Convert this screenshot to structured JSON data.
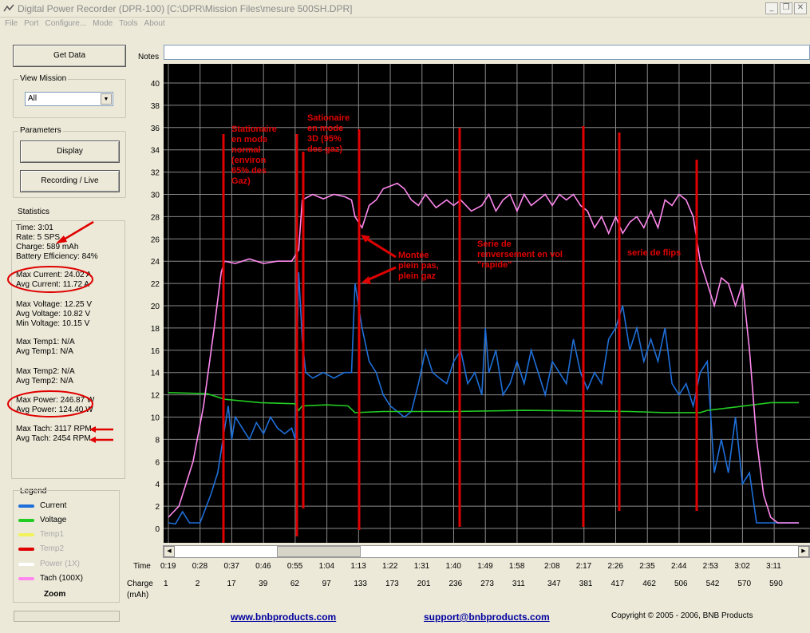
{
  "window": {
    "title": "Digital Power Recorder (DPR-100) [C:\\DPR\\Mission Files\\mesure 500SH.DPR]",
    "controls": [
      "_",
      "❐",
      "✕"
    ]
  },
  "menu": [
    "File",
    "Port",
    "Configure...",
    "Mode",
    "Tools",
    "About"
  ],
  "left_panel": {
    "get_data": "Get Data",
    "view_mission": {
      "title": "View Mission",
      "selected": "All"
    },
    "parameters": {
      "title": "Parameters",
      "display": "Display",
      "recording": "Recording / Live"
    },
    "statistics": {
      "title": "Statistics",
      "lines": [
        "Time: 3:01",
        "Rate: 5 SPS",
        "Charge: 589 mAh",
        "Battery Efficiency: 84%",
        "Max Current: 24.02 A",
        "Avg Current: 11.72 A",
        "Max Voltage: 12.25 V",
        "Avg Voltage: 10.82 V",
        "Min Voltage: 10.15 V",
        "Max Temp1: N/A",
        "Avg Temp1: N/A",
        "Max Temp2: N/A",
        "Avg Temp2: N/A",
        "Max Power: 246.87 W",
        "Avg Power: 124.40 W",
        "Max Tach: 3117 RPM",
        "Avg Tach: 2454 RPM"
      ]
    },
    "legend": {
      "title": "Legend",
      "items": [
        {
          "label": "Current",
          "color": "#1e6fd9",
          "active": true
        },
        {
          "label": "Voltage",
          "color": "#22cc22",
          "active": true
        },
        {
          "label": "Temp1",
          "color": "#f2f25a",
          "active": false
        },
        {
          "label": "Temp2",
          "color": "#e00000",
          "active": false
        },
        {
          "label": "Power (1X)",
          "color": "#ffffff",
          "active": false
        },
        {
          "label": "Tach    (100X)",
          "color": "#ff88ee",
          "active": true
        }
      ],
      "zoom": "Zoom"
    }
  },
  "notes": {
    "label": "Notes",
    "value": ""
  },
  "chart_data": {
    "type": "line",
    "ylim": [
      0,
      40
    ],
    "yticks": [
      0,
      2,
      4,
      6,
      8,
      10,
      12,
      14,
      16,
      18,
      20,
      22,
      24,
      26,
      28,
      30,
      32,
      34,
      36,
      38,
      40
    ],
    "xlim": [
      19,
      198
    ],
    "grid": true,
    "time_label": "Time",
    "charge_label": "Charge\n(mAh)",
    "time_ticks": [
      "0:19",
      "0:28",
      "0:37",
      "0:46",
      "0:55",
      "1:04",
      "1:13",
      "1:22",
      "1:31",
      "1:40",
      "1:49",
      "1:58",
      "2:08",
      "2:17",
      "2:26",
      "2:35",
      "2:44",
      "2:53",
      "3:02",
      "3:11"
    ],
    "charge_ticks": [
      "1",
      "2",
      "17",
      "39",
      "62",
      "97",
      "133",
      "173",
      "201",
      "236",
      "273",
      "311",
      "347",
      "381",
      "417",
      "462",
      "506",
      "542",
      "570",
      "590"
    ],
    "series": [
      {
        "name": "Current",
        "color": "#1e6fd9",
        "points": [
          [
            19,
            0.5
          ],
          [
            21,
            0.4
          ],
          [
            23,
            1.5
          ],
          [
            25,
            0.5
          ],
          [
            28,
            0.5
          ],
          [
            31,
            3
          ],
          [
            33,
            5
          ],
          [
            35,
            9
          ],
          [
            36,
            11
          ],
          [
            37,
            8
          ],
          [
            38,
            10
          ],
          [
            40,
            9
          ],
          [
            42,
            8
          ],
          [
            44,
            9.5
          ],
          [
            46,
            8.5
          ],
          [
            48,
            10
          ],
          [
            50,
            9
          ],
          [
            52,
            8.5
          ],
          [
            54,
            9
          ],
          [
            55,
            8
          ],
          [
            56,
            23
          ],
          [
            57,
            17
          ],
          [
            58,
            14
          ],
          [
            60,
            13.5
          ],
          [
            63,
            14
          ],
          [
            66,
            13.5
          ],
          [
            69,
            14
          ],
          [
            71,
            14
          ],
          [
            72,
            22
          ],
          [
            74,
            18
          ],
          [
            76,
            15
          ],
          [
            78,
            14
          ],
          [
            80,
            12
          ],
          [
            82,
            11
          ],
          [
            84,
            10.5
          ],
          [
            86,
            10
          ],
          [
            88,
            10.5
          ],
          [
            90,
            13
          ],
          [
            92,
            16
          ],
          [
            94,
            14
          ],
          [
            96,
            13.5
          ],
          [
            98,
            13
          ],
          [
            100,
            15
          ],
          [
            102,
            16
          ],
          [
            104,
            13
          ],
          [
            106,
            14
          ],
          [
            108,
            12
          ],
          [
            109,
            18
          ],
          [
            110,
            14
          ],
          [
            112,
            16
          ],
          [
            114,
            12
          ],
          [
            116,
            13
          ],
          [
            118,
            15
          ],
          [
            120,
            13
          ],
          [
            122,
            16
          ],
          [
            124,
            14
          ],
          [
            126,
            12
          ],
          [
            128,
            15
          ],
          [
            130,
            14
          ],
          [
            132,
            13
          ],
          [
            134,
            17
          ],
          [
            136,
            14
          ],
          [
            138,
            12.5
          ],
          [
            140,
            14
          ],
          [
            142,
            13
          ],
          [
            144,
            17
          ],
          [
            146,
            18
          ],
          [
            148,
            20
          ],
          [
            150,
            16
          ],
          [
            152,
            18
          ],
          [
            154,
            15
          ],
          [
            156,
            17
          ],
          [
            158,
            15
          ],
          [
            160,
            18
          ],
          [
            162,
            13
          ],
          [
            164,
            12
          ],
          [
            166,
            13
          ],
          [
            168,
            11
          ],
          [
            170,
            14
          ],
          [
            172,
            15
          ],
          [
            174,
            5
          ],
          [
            176,
            8
          ],
          [
            178,
            5
          ],
          [
            180,
            10
          ],
          [
            182,
            4
          ],
          [
            184,
            5
          ],
          [
            186,
            0.5
          ],
          [
            192,
            0.5
          ],
          [
            198,
            0.5
          ]
        ]
      },
      {
        "name": "Voltage",
        "color": "#22cc22",
        "points": [
          [
            19,
            12.2
          ],
          [
            30,
            12.1
          ],
          [
            35,
            11.6
          ],
          [
            45,
            11.3
          ],
          [
            55,
            11.2
          ],
          [
            56,
            10.6
          ],
          [
            57,
            11.0
          ],
          [
            64,
            11.1
          ],
          [
            70,
            11.0
          ],
          [
            72,
            10.4
          ],
          [
            80,
            10.5
          ],
          [
            100,
            10.5
          ],
          [
            120,
            10.6
          ],
          [
            150,
            10.5
          ],
          [
            160,
            10.4
          ],
          [
            170,
            10.4
          ],
          [
            172,
            10.6
          ],
          [
            180,
            10.9
          ],
          [
            190,
            11.3
          ],
          [
            198,
            11.3
          ]
        ]
      },
      {
        "name": "Tach    (100X)",
        "color": "#ff88ee",
        "points": [
          [
            19,
            1
          ],
          [
            22,
            2
          ],
          [
            26,
            6
          ],
          [
            29,
            11
          ],
          [
            32,
            18
          ],
          [
            34,
            23
          ],
          [
            35,
            24
          ],
          [
            38,
            23.8
          ],
          [
            42,
            24.2
          ],
          [
            46,
            23.8
          ],
          [
            50,
            24
          ],
          [
            54,
            24
          ],
          [
            56,
            25
          ],
          [
            57,
            29.5
          ],
          [
            60,
            30
          ],
          [
            63,
            29.6
          ],
          [
            66,
            30
          ],
          [
            69,
            29.8
          ],
          [
            71,
            29.5
          ],
          [
            72,
            28
          ],
          [
            74,
            27
          ],
          [
            76,
            29
          ],
          [
            78,
            29.5
          ],
          [
            80,
            30.5
          ],
          [
            84,
            31
          ],
          [
            86,
            30.5
          ],
          [
            88,
            29.5
          ],
          [
            90,
            29
          ],
          [
            92,
            30
          ],
          [
            95,
            28.8
          ],
          [
            98,
            29.5
          ],
          [
            100,
            29
          ],
          [
            102,
            29.5
          ],
          [
            105,
            28.5
          ],
          [
            108,
            29
          ],
          [
            110,
            30
          ],
          [
            112,
            28.5
          ],
          [
            114,
            29.5
          ],
          [
            116,
            30
          ],
          [
            118,
            28.5
          ],
          [
            120,
            30
          ],
          [
            122,
            29
          ],
          [
            124,
            29.5
          ],
          [
            126,
            30
          ],
          [
            128,
            29
          ],
          [
            130,
            30
          ],
          [
            132,
            29.5
          ],
          [
            134,
            30
          ],
          [
            136,
            29
          ],
          [
            138,
            28.5
          ],
          [
            140,
            27
          ],
          [
            142,
            28
          ],
          [
            144,
            26.5
          ],
          [
            146,
            28
          ],
          [
            148,
            26.5
          ],
          [
            150,
            27.5
          ],
          [
            152,
            28
          ],
          [
            154,
            27
          ],
          [
            156,
            28.5
          ],
          [
            158,
            27
          ],
          [
            160,
            29.5
          ],
          [
            162,
            29
          ],
          [
            164,
            30
          ],
          [
            166,
            29.5
          ],
          [
            168,
            28
          ],
          [
            170,
            24
          ],
          [
            172,
            22
          ],
          [
            174,
            20
          ],
          [
            176,
            22.5
          ],
          [
            178,
            22
          ],
          [
            180,
            20
          ],
          [
            182,
            22
          ],
          [
            184,
            16
          ],
          [
            186,
            8
          ],
          [
            188,
            3
          ],
          [
            190,
            1
          ],
          [
            192,
            0.5
          ],
          [
            198,
            0.5
          ]
        ]
      }
    ]
  },
  "annotations": [
    {
      "id": "stationnaire-normal",
      "lines": [
        "Stationaire",
        "en mode",
        "normal",
        "(environ",
        "65% des",
        "Gaz)"
      ]
    },
    {
      "id": "stationnaire-3d",
      "lines": [
        "Sationaire",
        "en mode",
        "3D (95%",
        "des gaz)"
      ]
    },
    {
      "id": "montee",
      "lines": [
        "Montée",
        "plein pas,",
        "plein gaz"
      ]
    },
    {
      "id": "renversement",
      "lines": [
        "Serie de",
        "renversement en vol",
        "\"rapide\""
      ]
    },
    {
      "id": "flips",
      "lines": [
        "serie de flips"
      ]
    }
  ],
  "footer": {
    "link1": "www.bnbproducts.com",
    "link2": "support@bnbproducts.com",
    "copyright": "Copyright © 2005 - 2006, BNB Products"
  }
}
